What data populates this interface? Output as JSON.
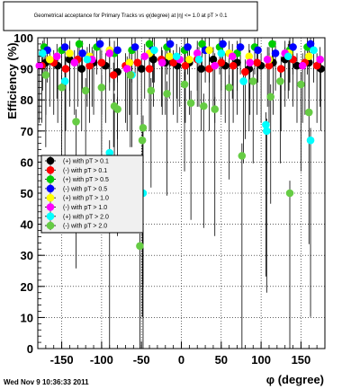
{
  "chart_data": {
    "type": "scatter",
    "title": "Geometrical acceptance for Primary Tracks vs φ(degree) at |η| <= 1.0 at pT > 0.1",
    "xlabel": "φ (degree)",
    "ylabel": "Efficiency (%)",
    "xlim": [
      -180,
      180
    ],
    "ylim": [
      0,
      100
    ],
    "xticks": [
      -150,
      -100,
      -50,
      0,
      50,
      100,
      150
    ],
    "yticks": [
      0,
      10,
      20,
      30,
      40,
      50,
      60,
      70,
      80,
      90,
      100
    ],
    "grid": true,
    "legend_position": "left-middle",
    "timestamp": "Wed Nov  9 10:36:33 2011",
    "series": [
      {
        "name": "(+) with pT > 0.1",
        "color": "#000000",
        "x": [
          -170,
          -155,
          -140,
          -125,
          -110,
          -95,
          -80,
          -65,
          -50,
          -35,
          -20,
          -5,
          10,
          25,
          40,
          55,
          70,
          85,
          100,
          115,
          130,
          145,
          160,
          175
        ],
        "y": [
          92,
          91,
          93,
          90,
          92,
          91,
          89,
          92,
          90,
          93,
          92,
          91,
          92,
          90,
          93,
          91,
          92,
          90,
          91,
          92,
          93,
          91,
          92,
          90
        ]
      },
      {
        "name": "(-) with pT > 0.1",
        "color": "#ff0000",
        "x": [
          -175,
          -160,
          -145,
          -130,
          -115,
          -100,
          -85,
          -70,
          -55,
          -40,
          -25,
          -10,
          5,
          20,
          35,
          50,
          65,
          80,
          95,
          110,
          125,
          140,
          155,
          170
        ],
        "y": [
          91,
          92,
          90,
          93,
          91,
          92,
          88,
          91,
          92,
          90,
          93,
          92,
          91,
          93,
          90,
          92,
          91,
          89,
          92,
          91,
          90,
          93,
          92,
          91
        ]
      },
      {
        "name": "(+) with pT > 0.5",
        "color": "#00cc00",
        "x": [
          -172,
          -150,
          -128,
          -106,
          -84,
          -62,
          -40,
          -18,
          4,
          26,
          48,
          70,
          92,
          114,
          136,
          158
        ],
        "y": [
          97,
          96,
          98,
          97,
          95,
          96,
          98,
          97,
          96,
          98,
          97,
          95,
          97,
          98,
          96,
          97
        ]
      },
      {
        "name": "(-) with pT > 0.5",
        "color": "#0000ff",
        "x": [
          -168,
          -146,
          -124,
          -102,
          -80,
          -58,
          -36,
          -14,
          8,
          30,
          52,
          74,
          96,
          118,
          140,
          162
        ],
        "y": [
          96,
          97,
          95,
          98,
          96,
          97,
          96,
          98,
          97,
          96,
          98,
          97,
          96,
          95,
          97,
          98
        ]
      },
      {
        "name": "(+) with pT > 1.0",
        "color": "#ffff00",
        "x": [
          -165,
          -140,
          -115,
          -90,
          -65,
          -40,
          -15,
          10,
          35,
          60,
          85,
          110,
          135,
          160
        ],
        "y": [
          93,
          95,
          94,
          96,
          92,
          95,
          94,
          93,
          96,
          95,
          94,
          93,
          95,
          94
        ]
      },
      {
        "name": "(-) with pT > 1.0",
        "color": "#ff00ff",
        "x": [
          -178,
          -156,
          -134,
          -112,
          -90,
          -68,
          -46,
          -24,
          -2,
          20,
          42,
          64,
          86,
          108,
          130,
          152,
          174
        ],
        "y": [
          91,
          94,
          92,
          93,
          95,
          90,
          94,
          92,
          93,
          95,
          91,
          94,
          92,
          93,
          95,
          91,
          93
        ]
      },
      {
        "name": "(+) with pT > 2.0",
        "color": "#00ffff",
        "x": [
          -174,
          -146,
          -118,
          -90,
          -62,
          -48,
          -34,
          -6,
          22,
          50,
          78,
          106,
          107,
          134,
          162,
          166
        ],
        "y": [
          95,
          86,
          93,
          63,
          88,
          50,
          96,
          94,
          93,
          95,
          86,
          72,
          70,
          94,
          67,
          96
        ]
      },
      {
        "name": "(-) with pT > 2.0",
        "color": "#66cc44",
        "x": [
          -170,
          -150,
          -132,
          -120,
          -100,
          -84,
          -80,
          -64,
          -52,
          -49,
          -48,
          -38,
          -18,
          4,
          12,
          28,
          42,
          60,
          76,
          90,
          112,
          124,
          136,
          150,
          160
        ],
        "y": [
          88,
          84,
          73,
          83,
          84,
          78,
          77,
          88,
          33,
          67,
          71,
          83,
          82,
          85,
          79,
          78,
          77,
          84,
          62,
          86,
          81,
          86,
          50,
          85,
          76
        ]
      }
    ],
    "legend": [
      {
        "name": "(+) with pT > 0.1",
        "color": "#000000"
      },
      {
        "name": "(-) with pT > 0.1",
        "color": "#ff0000"
      },
      {
        "name": "(+) with pT > 0.5",
        "color": "#00cc00"
      },
      {
        "name": "(-) with pT > 0.5",
        "color": "#0000ff"
      },
      {
        "name": "(+) with pT > 1.0",
        "color": "#ffff00"
      },
      {
        "name": "(-) with pT > 1.0",
        "color": "#ff00ff"
      },
      {
        "name": "(+) with pT > 2.0",
        "color": "#00ffff"
      },
      {
        "name": "(-) with pT > 2.0",
        "color": "#66cc44"
      }
    ]
  }
}
